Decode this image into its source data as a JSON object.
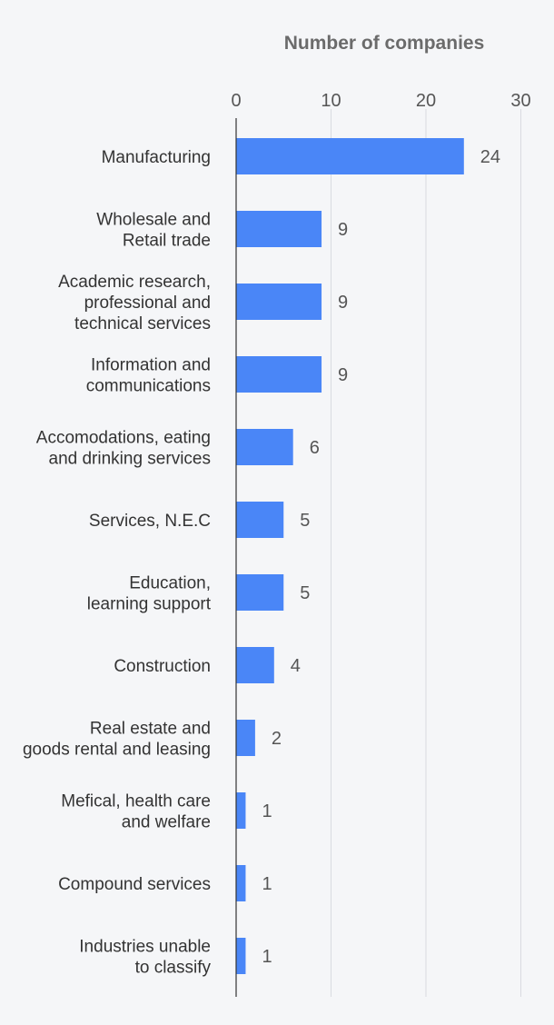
{
  "chart_data": {
    "type": "bar",
    "orientation": "horizontal",
    "xlabel": "Number of companies",
    "xlim": [
      0,
      30
    ],
    "xticks": [
      0,
      10,
      20,
      30
    ],
    "grid": true,
    "categories": [
      [
        "Manufacturing"
      ],
      [
        "Wholesale and",
        "Retail trade"
      ],
      [
        "Academic research,",
        "professional and",
        "technical services"
      ],
      [
        "Information and",
        "communications"
      ],
      [
        "Accomodations, eating",
        "and drinking services"
      ],
      [
        "Services, N.E.C"
      ],
      [
        "Education,",
        "learning support"
      ],
      [
        "Construction"
      ],
      [
        "Real estate and",
        "goods rental and leasing"
      ],
      [
        "Mefical, health care",
        "and welfare"
      ],
      [
        "Compound services"
      ],
      [
        "Industries unable",
        "to classify"
      ]
    ],
    "values": [
      24,
      9,
      9,
      9,
      6,
      5,
      5,
      4,
      2,
      1,
      1,
      1
    ],
    "colors": {
      "bar": "#4a86f7",
      "grid": "#d9dbe0",
      "axis": "#333333"
    }
  }
}
